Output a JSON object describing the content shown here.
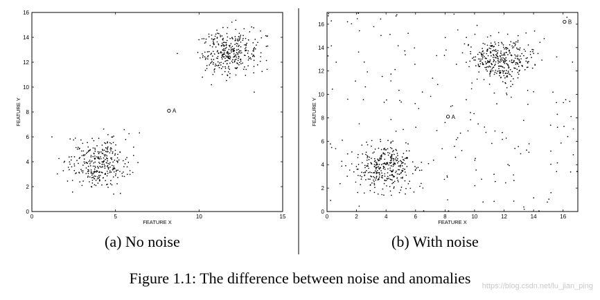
{
  "figure_caption": "Figure 1.1: The difference between noise and anomalies",
  "watermark": "https://blog.csdn.net/lu_jian_ping",
  "divider_color": "#000000",
  "chart_data": [
    {
      "type": "scatter",
      "subcaption": "(a) No noise",
      "xlabel": "FEATURE X",
      "ylabel": "FEATURE Y",
      "xlim": [
        0,
        15
      ],
      "ylim": [
        0,
        16
      ],
      "xticks": [
        0,
        5,
        10,
        15
      ],
      "yticks": [
        0,
        2,
        4,
        6,
        8,
        10,
        12,
        14,
        16
      ],
      "grid": false,
      "series": [
        {
          "cluster_center": [
            4.0,
            3.9
          ],
          "spread": [
            0.9,
            1.0
          ],
          "count": 320,
          "color": "#000000"
        },
        {
          "cluster_center": [
            11.8,
            12.9
          ],
          "spread": [
            0.9,
            0.9
          ],
          "count": 330,
          "color": "#000000"
        },
        {
          "points": [
            [
              8.7,
              12.7
            ],
            [
              1.2,
              6.0
            ],
            [
              13.3,
              9.6
            ],
            [
              10.2,
              10.8
            ],
            [
              14.1,
              13.3
            ]
          ],
          "color": "#000000"
        }
      ],
      "anomalies": [
        {
          "x": 8.2,
          "y": 8.1,
          "label": "A"
        }
      ]
    },
    {
      "type": "scatter",
      "subcaption": "(b) With noise",
      "xlabel": "FEATURE X",
      "ylabel": "FEATURE Y",
      "xlim": [
        0,
        17
      ],
      "ylim": [
        0,
        17
      ],
      "xticks": [
        0,
        2,
        4,
        6,
        8,
        10,
        12,
        14,
        16
      ],
      "yticks": [
        0,
        2,
        4,
        6,
        8,
        10,
        12,
        14,
        16
      ],
      "grid": false,
      "series": [
        {
          "cluster_center": [
            4.0,
            3.8
          ],
          "spread": [
            1.0,
            1.0
          ],
          "count": 330,
          "color": "#000000"
        },
        {
          "cluster_center": [
            11.8,
            12.9
          ],
          "spread": [
            1.0,
            0.9
          ],
          "count": 330,
          "color": "#000000"
        },
        {
          "uniform_noise": true,
          "count": 190,
          "color": "#000000"
        }
      ],
      "anomalies": [
        {
          "x": 8.2,
          "y": 8.1,
          "label": "A"
        },
        {
          "x": 16.1,
          "y": 16.2,
          "label": "B"
        }
      ]
    }
  ]
}
